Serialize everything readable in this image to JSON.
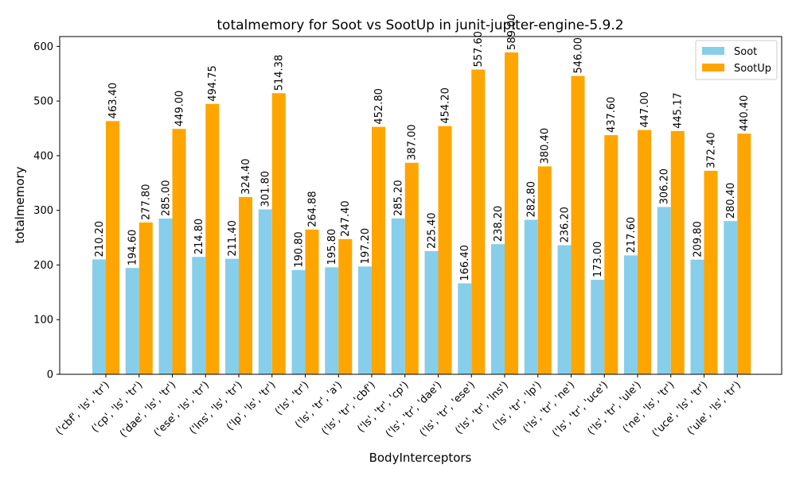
{
  "chart_data": {
    "type": "bar",
    "title": "totalmemory for Soot vs SootUp in junit-jupiter-engine-5.9.2",
    "xlabel": "BodyInterceptors",
    "ylabel": "totalmemory",
    "ylim": [
      0,
      618
    ],
    "yticks": [
      0,
      100,
      200,
      300,
      400,
      500,
      600
    ],
    "grid": false,
    "legend_position": "top-right",
    "categories": [
      "('cbf', 'ls', 'tr')",
      "('cp', 'ls', 'tr')",
      "('dae', 'ls', 'tr')",
      "('ese', 'ls', 'tr')",
      "('lns', 'ls', 'tr')",
      "('lp', 'ls', 'tr')",
      "('ls', 'tr')",
      "('ls', 'tr', 'a')",
      "('ls', 'tr', 'cbf')",
      "('ls', 'tr', 'cp')",
      "('ls', 'tr', 'dae')",
      "('ls', 'tr', 'ese')",
      "('ls', 'tr', 'lns')",
      "('ls', 'tr', 'lp')",
      "('ls', 'tr', 'ne')",
      "('ls', 'tr', 'uce')",
      "('ls', 'tr', 'ule')",
      "('ne', 'ls', 'tr')",
      "('uce', 'ls', 'tr')",
      "('ule', 'ls', 'tr')"
    ],
    "series": [
      {
        "name": "Soot",
        "color": "#87ceeb",
        "values": [
          210.2,
          194.6,
          285.0,
          214.8,
          211.4,
          301.8,
          190.8,
          195.8,
          197.2,
          285.2,
          225.4,
          166.4,
          238.2,
          282.8,
          236.2,
          173.0,
          217.6,
          306.2,
          209.8,
          280.4
        ],
        "labels": [
          "210.20",
          "194.60",
          "285.00",
          "214.80",
          "211.40",
          "301.80",
          "190.80",
          "195.80",
          "197.20",
          "285.20",
          "225.40",
          "166.40",
          "238.20",
          "282.80",
          "236.20",
          "173.00",
          "217.60",
          "306.20",
          "209.80",
          "280.40"
        ]
      },
      {
        "name": "SootUp",
        "color": "#ffa500",
        "values": [
          463.4,
          277.8,
          449.0,
          494.75,
          324.4,
          514.38,
          264.88,
          247.4,
          452.8,
          387.0,
          454.2,
          557.6,
          589.0,
          380.4,
          546.0,
          437.6,
          447.0,
          445.17,
          372.4,
          440.4
        ],
        "labels": [
          "463.40",
          "277.80",
          "449.00",
          "494.75",
          "324.40",
          "514.38",
          "264.88",
          "247.40",
          "452.80",
          "387.00",
          "454.20",
          "557.60",
          "589.00",
          "380.40",
          "546.00",
          "437.60",
          "447.00",
          "445.17",
          "372.40",
          "440.40"
        ]
      }
    ]
  }
}
